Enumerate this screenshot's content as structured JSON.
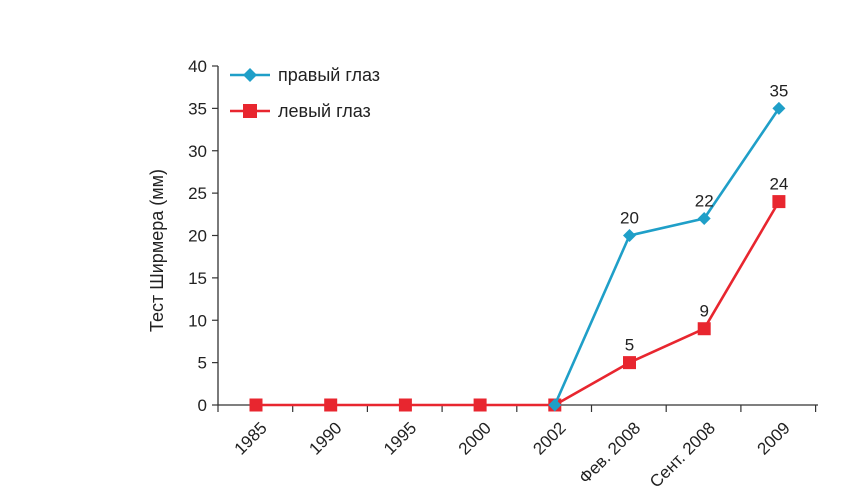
{
  "chart_data": {
    "type": "line",
    "title": "",
    "xlabel": "",
    "ylabel": "Тест Ширмера (мм)",
    "categories": [
      "1985",
      "1990",
      "1995",
      "2000",
      "2002",
      "Фев. 2008",
      "Сент. 2008",
      "2009"
    ],
    "ylim": [
      0,
      40
    ],
    "yticks": [
      0,
      5,
      10,
      15,
      20,
      25,
      30,
      35,
      40
    ],
    "grid": false,
    "legend_position": "top-left",
    "series": [
      {
        "name": "правый глаз",
        "marker": "diamond",
        "color": "#1f9fc8",
        "values": [
          null,
          null,
          null,
          null,
          0,
          20,
          22,
          35
        ],
        "labels": [
          null,
          null,
          null,
          null,
          null,
          "20",
          "22",
          "35"
        ]
      },
      {
        "name": "левый глаз",
        "marker": "square",
        "color": "#e8262f",
        "values": [
          0,
          0,
          0,
          0,
          0,
          5,
          9,
          24
        ],
        "labels": [
          null,
          null,
          null,
          null,
          null,
          "5",
          "9",
          "24"
        ]
      }
    ]
  }
}
